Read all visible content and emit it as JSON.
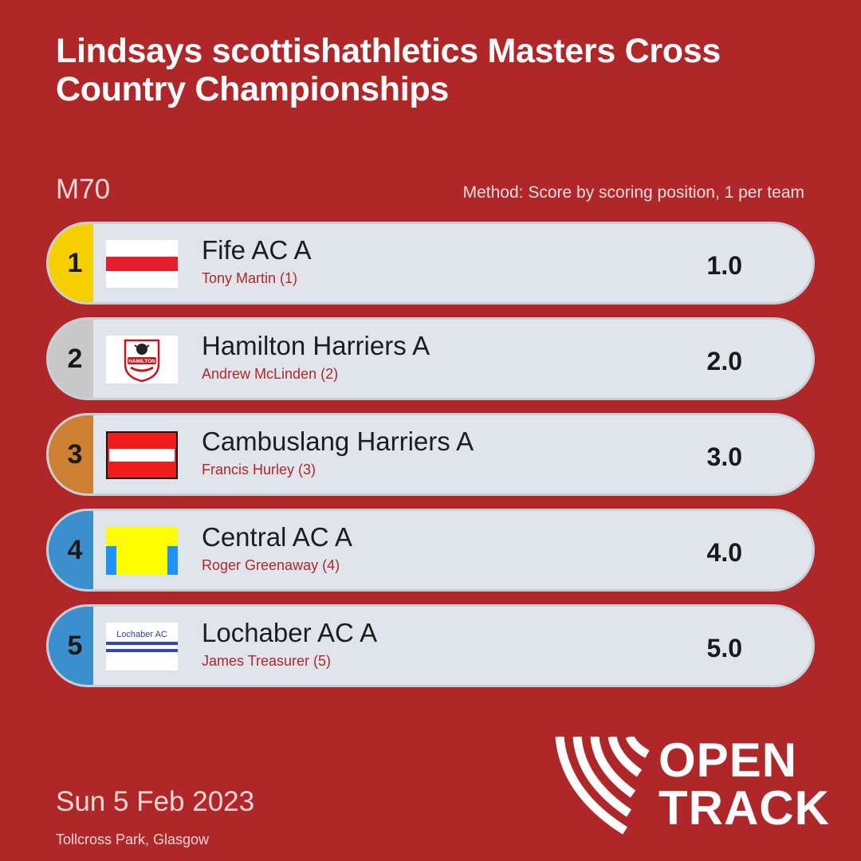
{
  "header": {
    "title": "Lindsays scottishathletics Masters Cross Country Championships",
    "category": "M70",
    "method": "Method: Score by scoring position, 1 per team"
  },
  "rows": [
    {
      "rank": "1",
      "team": "Fife AC A",
      "athlete": "Tony Martin (1)",
      "score": "1.0",
      "rank_color": "#f5cf00",
      "logo_icon": "fife-ac-flag-icon"
    },
    {
      "rank": "2",
      "team": "Hamilton Harriers A",
      "athlete": "Andrew McLinden (2)",
      "score": "2.0",
      "rank_color": "#c8c8c8",
      "logo_icon": "hamilton-harriers-badge-icon",
      "logo_text": "HAMILTON"
    },
    {
      "rank": "3",
      "team": "Cambuslang Harriers A",
      "athlete": "Francis Hurley (3)",
      "score": "3.0",
      "rank_color": "#cd8032",
      "logo_icon": "cambuslang-harriers-flag-icon"
    },
    {
      "rank": "4",
      "team": "Central AC A",
      "athlete": "Roger Greenaway (4)",
      "score": "4.0",
      "rank_color": "#3a8fcc",
      "logo_icon": "central-ac-flag-icon"
    },
    {
      "rank": "5",
      "team": "Lochaber AC A",
      "athlete": "James Treasurer (5)",
      "score": "5.0",
      "rank_color": "#3a8fcc",
      "logo_icon": "lochaber-ac-logo-icon",
      "logo_text": "Lochaber AC"
    }
  ],
  "footer": {
    "date": "Sun 5 Feb 2023",
    "venue": "Tollcross Park, Glasgow",
    "brand_line1": "OPEN",
    "brand_line2": "TRACK"
  },
  "colors": {
    "background": "#b0272a",
    "row_background": "#e0e5ec",
    "athlete_text": "#b0272a"
  }
}
